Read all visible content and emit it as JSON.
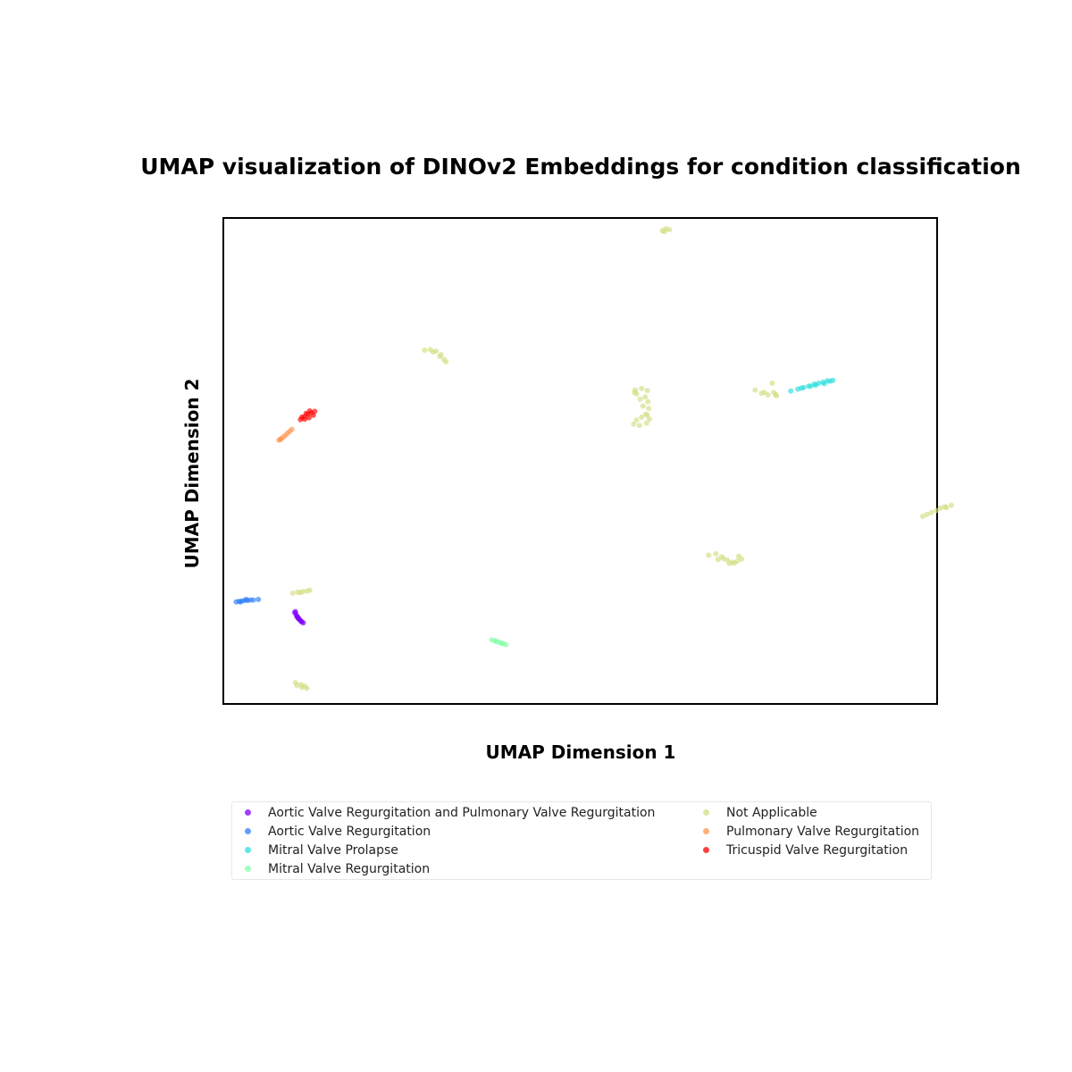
{
  "chart_data": {
    "type": "scatter",
    "title": "UMAP visualization of DINOv2 Embeddings for condition classification",
    "xlabel": "UMAP Dimension 1",
    "ylabel": "UMAP Dimension 2",
    "xlim": [
      0,
      100
    ],
    "ylim": [
      0,
      100
    ],
    "ticks_shown": false,
    "grid": false,
    "legend": "bottom",
    "series": [
      {
        "name": "Aortic Valve Regurgitation and Pulmonary Valve Regurgitation",
        "color": "#8000ff",
        "x": [
          10.0,
          10.2,
          10.3,
          10.5,
          10.7,
          10.9,
          11.0,
          11.2,
          10.4,
          10.1,
          10.6
        ],
        "y": [
          18.8,
          18.4,
          18.0,
          17.6,
          17.3,
          17.0,
          16.9,
          16.7,
          17.9,
          19.0,
          17.5
        ]
      },
      {
        "name": "Aortic Valve Regurgitation",
        "color": "#2c7ef8",
        "x": [
          1.8,
          2.2,
          2.6,
          3.0,
          3.4,
          3.8,
          4.2,
          2.4,
          3.2,
          4.9
        ],
        "y": [
          21.0,
          21.1,
          21.2,
          21.3,
          21.3,
          21.4,
          21.4,
          21.0,
          21.5,
          21.5
        ]
      },
      {
        "name": "Mitral Valve Prolapse",
        "color": "#2adddd",
        "x": [
          79.5,
          80.5,
          81.3,
          82.0,
          82.8,
          83.4,
          84.0,
          84.6,
          85.0,
          85.4,
          83.0,
          84.2,
          81.0,
          82.3
        ],
        "y": [
          64.4,
          64.8,
          65.1,
          65.4,
          65.8,
          66.0,
          66.2,
          66.5,
          66.4,
          66.6,
          65.6,
          65.9,
          65.0,
          65.4
        ]
      },
      {
        "name": "Mitral Valve Regurgitation",
        "color": "#82ffa9",
        "x": [
          37.6,
          38.0,
          38.4,
          38.8,
          39.2,
          39.6,
          38.2,
          39.0
        ],
        "y": [
          13.2,
          13.0,
          12.8,
          12.6,
          12.4,
          12.2,
          12.9,
          12.5
        ]
      },
      {
        "name": "Not Applicable",
        "color": "#d4dd80",
        "x": [
          61.5,
          62.0,
          62.5,
          61.8,
          28.2,
          29.0,
          29.8,
          30.5,
          30.9,
          31.2,
          29.4,
          30.3,
          57.7,
          58.6,
          59.4,
          57.9,
          59.1,
          58.4,
          59.5,
          59.6,
          59.2,
          58.6,
          57.9,
          57.5,
          58.3,
          59.3,
          59.7,
          57.6,
          58.8,
          59.4,
          74.5,
          75.4,
          76.3,
          77.1,
          77.5,
          76.9,
          75.8,
          77.4,
          98.0,
          98.6,
          99.2,
          99.9,
          100.5,
          101.1,
          102.0,
          101.3,
          68.0,
          69.0,
          69.8,
          70.6,
          71.3,
          72.0,
          72.6,
          69.3,
          70.9,
          72.2,
          70.1,
          71.6,
          9.7,
          10.4,
          11.1,
          11.7,
          12.1,
          10.8,
          10.1,
          10.3,
          11.0,
          11.7,
          10.9,
          11.4
        ],
        "y": [
          97.4,
          97.8,
          97.6,
          97.2,
          72.8,
          72.9,
          72.6,
          71.9,
          70.9,
          70.4,
          72.4,
          71.5,
          64.6,
          64.9,
          64.5,
          63.8,
          63.2,
          62.7,
          62.2,
          60.8,
          59.6,
          59.0,
          58.4,
          57.6,
          57.3,
          57.8,
          58.6,
          64.1,
          61.3,
          59.4,
          64.6,
          63.9,
          63.6,
          64.1,
          63.4,
          66.0,
          64.1,
          63.7,
          38.6,
          39.0,
          39.4,
          39.8,
          40.3,
          40.6,
          40.9,
          40.4,
          30.6,
          30.9,
          30.3,
          29.6,
          29.2,
          29.4,
          29.8,
          29.7,
          28.9,
          30.4,
          29.9,
          29.0,
          22.8,
          23.0,
          23.1,
          23.2,
          23.4,
          22.9,
          4.4,
          3.8,
          3.4,
          3.2,
          4.0,
          3.7
        ]
      },
      {
        "name": "Pulmonary Valve Regurgitation",
        "color": "#ff954e",
        "x": [
          7.8,
          8.1,
          8.4,
          8.7,
          9.0,
          9.3,
          9.6,
          8.0
        ],
        "y": [
          54.3,
          54.6,
          54.9,
          55.3,
          55.7,
          56.1,
          56.5,
          54.4
        ]
      },
      {
        "name": "Tricuspid Valve Regurgitation",
        "color": "#ff0000",
        "x": [
          10.8,
          11.3,
          11.8,
          12.3,
          12.8,
          11.0,
          11.6,
          12.1,
          12.6,
          11.4,
          12.0
        ],
        "y": [
          58.5,
          59.1,
          59.6,
          59.9,
          60.2,
          59.0,
          59.8,
          60.3,
          59.4,
          58.6,
          58.9
        ]
      }
    ]
  },
  "legend": {
    "columns": [
      [
        "Aortic Valve Regurgitation and Pulmonary Valve Regurgitation",
        "Aortic Valve Regurgitation",
        "Mitral Valve Prolapse",
        "Mitral Valve Regurgitation"
      ],
      [
        "Not Applicable",
        "Pulmonary Valve Regurgitation",
        "Tricuspid Valve Regurgitation"
      ]
    ]
  }
}
